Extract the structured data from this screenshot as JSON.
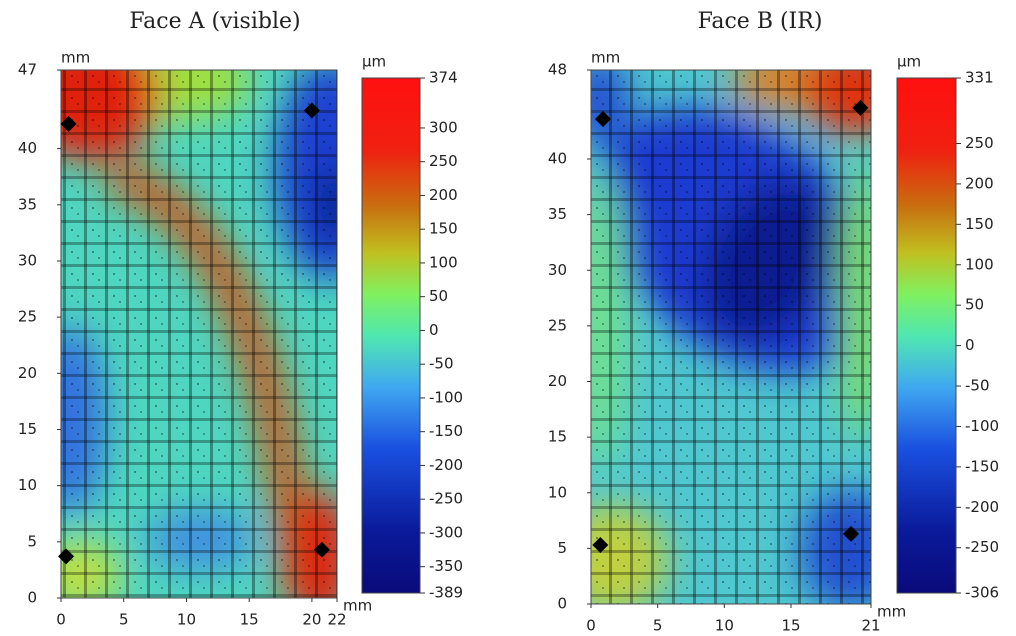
{
  "chart_data": [
    {
      "type": "heatmap",
      "title": "Face A (visible)",
      "x_label": "mm",
      "y_label": "mm",
      "xlim": [
        0,
        22
      ],
      "xticks": [
        0,
        5,
        10,
        15,
        20,
        22
      ],
      "ylim": [
        0,
        47
      ],
      "yticks": [
        0,
        5,
        10,
        15,
        20,
        25,
        30,
        35,
        40,
        47
      ],
      "colorbar": {
        "label": "µm",
        "lim": [
          -389,
          374
        ],
        "ticks": [
          374,
          300,
          250,
          200,
          150,
          100,
          50,
          0,
          -50,
          -100,
          -150,
          -200,
          -250,
          -300,
          -350,
          -389
        ]
      },
      "markers": {
        "x": [
          0.6,
          20.0,
          0.4,
          20.8
        ],
        "y": [
          42.2,
          43.4,
          3.7,
          4.3
        ]
      }
    },
    {
      "type": "heatmap",
      "title": "Face B (IR)",
      "x_label": "mm",
      "y_label": "mm",
      "xlim": [
        0,
        21
      ],
      "xticks": [
        0,
        5,
        10,
        15,
        21
      ],
      "ylim": [
        0,
        48
      ],
      "yticks": [
        0,
        5,
        10,
        15,
        20,
        25,
        30,
        35,
        40,
        48
      ],
      "colorbar": {
        "label": "µm",
        "lim": [
          -306,
          331
        ],
        "ticks": [
          331,
          250,
          200,
          150,
          100,
          50,
          0,
          -50,
          -100,
          -150,
          -200,
          -250,
          -306
        ]
      },
      "markers": {
        "x": [
          0.9,
          20.2,
          0.7,
          19.5
        ],
        "y": [
          43.6,
          44.6,
          5.3,
          6.3
        ]
      }
    }
  ]
}
